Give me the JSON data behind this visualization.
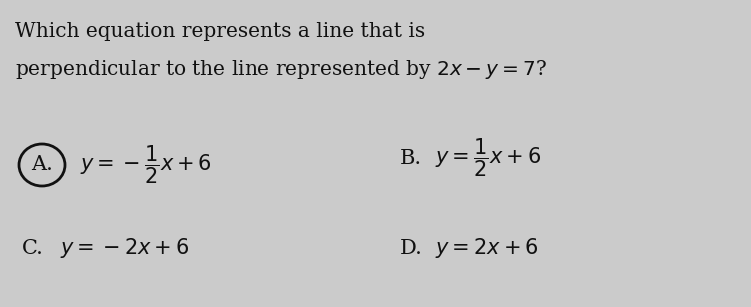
{
  "background_color": "#cbcbcb",
  "title_line1": "Which equation represents a line that is",
  "title_line2": "perpendicular to the line represented by $2x-y=7$?",
  "option_A_label": "A.",
  "option_A_eq": "$y = -\\dfrac{1}{2}x + 6$",
  "option_B_label": "B.",
  "option_B_eq": "$y = \\dfrac{1}{2}x + 6$",
  "option_C_label": "C.",
  "option_C_eq": "$y = -2x + 6$",
  "option_D_label": "D.",
  "option_D_eq": "$y = 2x + 6$",
  "text_color": "#111111",
  "title_fontsize": 14.5,
  "option_label_fontsize": 15,
  "option_eq_fontsize": 15
}
